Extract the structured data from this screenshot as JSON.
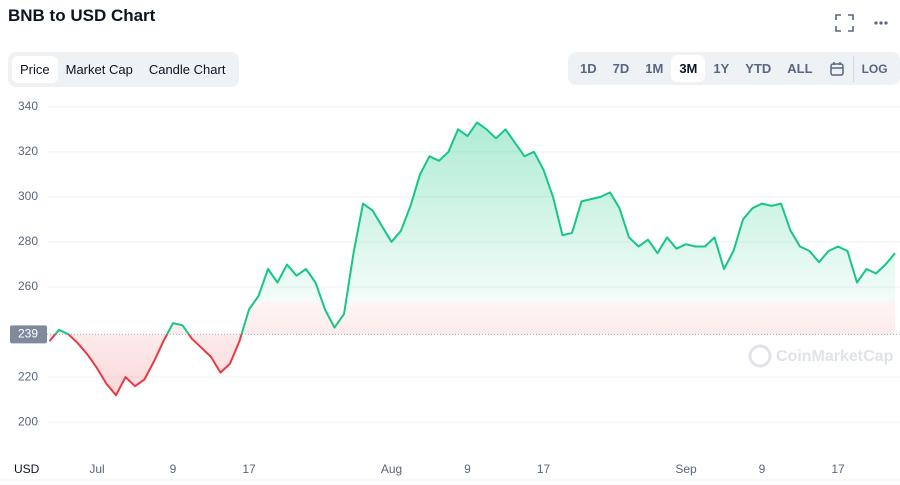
{
  "header": {
    "title": "BNB to USD Chart"
  },
  "tabs": [
    "Price",
    "Market Cap",
    "Candle Chart"
  ],
  "active_tab": 0,
  "ranges": [
    "1D",
    "7D",
    "1M",
    "3M",
    "1Y",
    "YTD",
    "ALL"
  ],
  "active_range": 3,
  "log_button": "LOG",
  "watermark": "CoinMarketCap",
  "chart_data": {
    "type": "line",
    "y_axis_label": "USD",
    "categories": [
      null,
      null,
      null,
      null,
      null,
      "Jul",
      null,
      null,
      null,
      null,
      null,
      null,
      null,
      "9",
      null,
      null,
      null,
      null,
      null,
      null,
      null,
      "17",
      null,
      null,
      null,
      null,
      null,
      null,
      null,
      null,
      null,
      null,
      null,
      null,
      null,
      null,
      "Aug",
      null,
      null,
      null,
      null,
      null,
      null,
      null,
      "9",
      null,
      null,
      null,
      null,
      null,
      null,
      null,
      "17",
      null,
      null,
      null,
      null,
      null,
      null,
      null,
      null,
      null,
      null,
      null,
      null,
      null,
      null,
      "Sep",
      null,
      null,
      null,
      null,
      null,
      null,
      null,
      "9",
      null,
      null,
      null,
      null,
      null,
      null,
      null,
      "17",
      null,
      null,
      null,
      null,
      null,
      null
    ],
    "series": [
      {
        "name": "Price",
        "values": [
          236,
          241,
          239,
          235,
          230,
          224,
          217,
          212,
          220,
          216,
          219,
          227,
          236,
          244,
          243,
          237,
          233,
          229,
          222,
          226,
          236,
          250,
          256,
          268,
          262,
          270,
          265,
          268,
          262,
          250,
          242,
          248,
          275,
          297,
          294,
          287,
          280,
          285,
          296,
          310,
          318,
          316,
          320,
          330,
          327,
          333,
          330,
          326,
          330,
          324,
          318,
          320,
          312,
          300,
          283,
          284,
          298,
          299,
          300,
          302,
          295,
          282,
          278,
          281,
          275,
          282,
          277,
          279,
          278,
          278,
          282,
          268,
          276,
          290,
          295,
          297,
          296,
          297,
          285,
          278,
          276,
          271,
          276,
          278,
          276,
          262,
          268,
          266,
          270,
          275
        ]
      }
    ],
    "baseline": 239,
    "up_color": "#16c784",
    "down_color": "#ea3943",
    "ylim": [
      185,
      343
    ],
    "yticks": [
      200,
      220,
      260,
      280,
      300,
      320,
      340
    ],
    "grid": true
  }
}
